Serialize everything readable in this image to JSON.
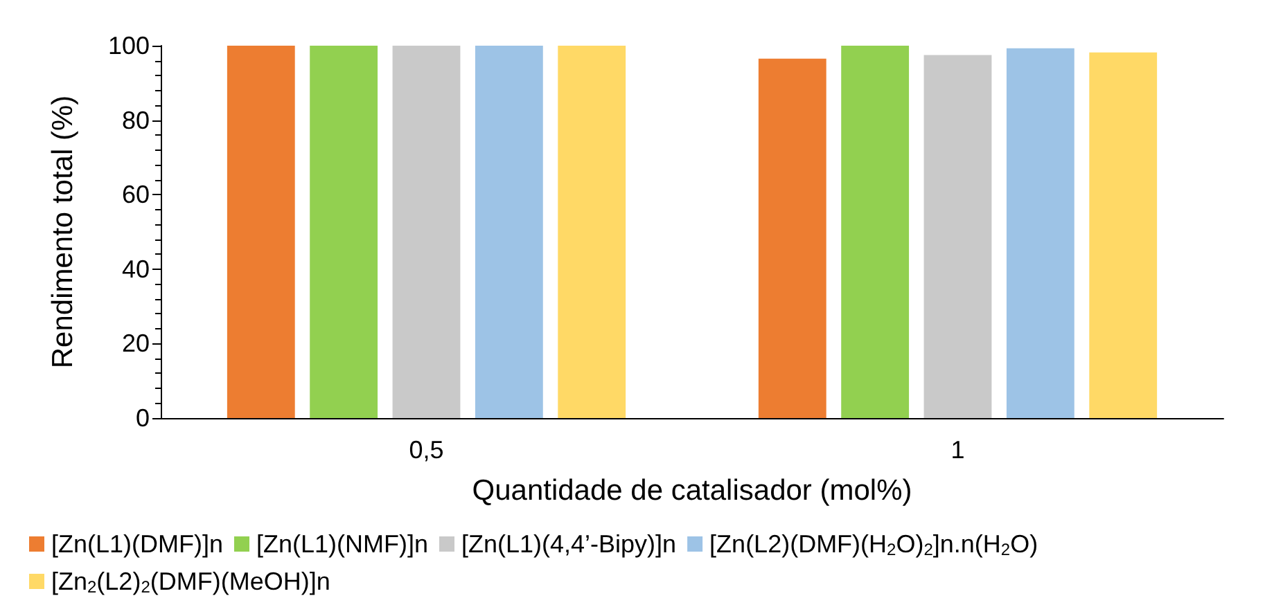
{
  "chart_data": {
    "type": "bar",
    "xlabel": "Quantidade de catalisador (mol%)",
    "ylabel": "Rendimento total (%)",
    "categories": [
      "0,5",
      "1"
    ],
    "series": [
      {
        "name": "[Zn(L1)(DMF)]n",
        "color": "#ed7d31",
        "values": [
          100,
          96.5
        ]
      },
      {
        "name": "[Zn(L1)(NMF)]n",
        "color": "#92d050",
        "values": [
          100,
          100
        ]
      },
      {
        "name": "[Zn(L1)(4,4’-Bipy)]n",
        "color": "#c9c9c9",
        "values": [
          100,
          97.5
        ]
      },
      {
        "name": "[Zn(L2)(DMF)(H$_{2}$O)$_{2}$]n.n(H$_{2}$O)",
        "color": "#9dc3e6",
        "values": [
          100,
          99.3
        ]
      },
      {
        "name": "[Zn$_{2}$(L2)$_{2}$(DMF)(MeOH)]n",
        "color": "#ffd966",
        "values": [
          100,
          98.2
        ]
      }
    ],
    "ylim": [
      0,
      100
    ],
    "yticks": [
      0,
      20,
      40,
      60,
      80,
      100
    ],
    "grid": false,
    "legend": "bottom"
  }
}
